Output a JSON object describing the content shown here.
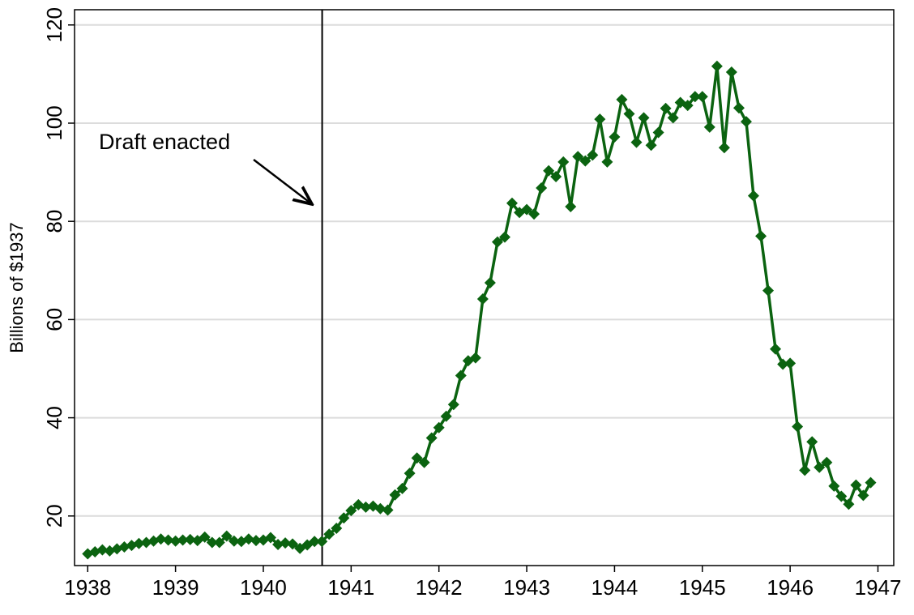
{
  "chart_data": {
    "type": "line",
    "y_label": "Billions of $1937",
    "annotation": "Draft enacted",
    "vline": 1940.67,
    "x": [
      1938,
      1938.083,
      1938.167,
      1938.25,
      1938.333,
      1938.417,
      1938.5,
      1938.583,
      1938.667,
      1938.75,
      1938.833,
      1938.917,
      1939,
      1939.083,
      1939.167,
      1939.25,
      1939.333,
      1939.417,
      1939.5,
      1939.583,
      1939.667,
      1939.75,
      1939.833,
      1939.917,
      1940,
      1940.083,
      1940.167,
      1940.25,
      1940.333,
      1940.417,
      1940.5,
      1940.583,
      1940.667,
      1940.75,
      1940.833,
      1940.917,
      1941,
      1941.083,
      1941.167,
      1941.25,
      1941.333,
      1941.417,
      1941.5,
      1941.583,
      1941.667,
      1941.75,
      1941.833,
      1941.917,
      1942,
      1942.083,
      1942.167,
      1942.25,
      1942.333,
      1942.417,
      1942.5,
      1942.583,
      1942.667,
      1942.75,
      1942.833,
      1942.917,
      1943,
      1943.083,
      1943.167,
      1943.25,
      1943.333,
      1943.417,
      1943.5,
      1943.583,
      1943.667,
      1943.75,
      1943.833,
      1943.917,
      1944,
      1944.083,
      1944.167,
      1944.25,
      1944.333,
      1944.417,
      1944.5,
      1944.583,
      1944.667,
      1944.75,
      1944.833,
      1944.917,
      1945,
      1945.083,
      1945.167,
      1945.25,
      1945.333,
      1945.417,
      1945.5,
      1945.583,
      1945.667,
      1945.75,
      1945.833,
      1945.917,
      1946,
      1946.083,
      1946.167,
      1946.25,
      1946.333,
      1946.417,
      1946.5,
      1946.583,
      1946.667,
      1946.75,
      1946.833,
      1946.917
    ],
    "series": [
      {
        "color": "#0b6310",
        "values": [
          12.3,
          12.7,
          13.1,
          12.9,
          13.3,
          13.7,
          14.0,
          14.4,
          14.6,
          14.9,
          15.3,
          15.1,
          14.9,
          15.1,
          15.2,
          15.0,
          15.7,
          14.6,
          14.6,
          15.9,
          14.9,
          14.8,
          15.3,
          15.0,
          15.1,
          15.6,
          14.2,
          14.5,
          14.3,
          13.4,
          14.1,
          14.8,
          14.8,
          16.3,
          17.5,
          19.6,
          21.1,
          22.3,
          21.8,
          22.0,
          21.5,
          21.2,
          24.3,
          25.6,
          28.7,
          31.8,
          30.9,
          35.9,
          38.0,
          40.3,
          42.7,
          48.6,
          51.6,
          52.2,
          64.2,
          67.5,
          75.8,
          76.8,
          83.7,
          81.8,
          82.4,
          81.5,
          86.8,
          90.3,
          89.1,
          92.1,
          83.0,
          93.2,
          92.3,
          93.5,
          100.8,
          92.1,
          97.2,
          104.8,
          101.9,
          96.1,
          101.1,
          95.5,
          98.1,
          103.0,
          101.1,
          104.2,
          103.6,
          105.4,
          105.4,
          99.2,
          111.6,
          95.0,
          110.4,
          103.1,
          100.3,
          85.2,
          77.0,
          65.9,
          54.0,
          50.9,
          51.1,
          38.2,
          29.3,
          35.1,
          29.9,
          30.9,
          26.1,
          24.0,
          22.4,
          26.3,
          24.2,
          26.8
        ]
      }
    ],
    "xlim": [
      1937.85,
      1947.18
    ],
    "xticks": [
      1938,
      1939,
      1940,
      1941,
      1942,
      1943,
      1944,
      1945,
      1946,
      1947
    ],
    "ylim": [
      9.9,
      123.1
    ],
    "yticks": [
      20,
      40,
      60,
      80,
      100,
      120
    ],
    "grid": true
  }
}
